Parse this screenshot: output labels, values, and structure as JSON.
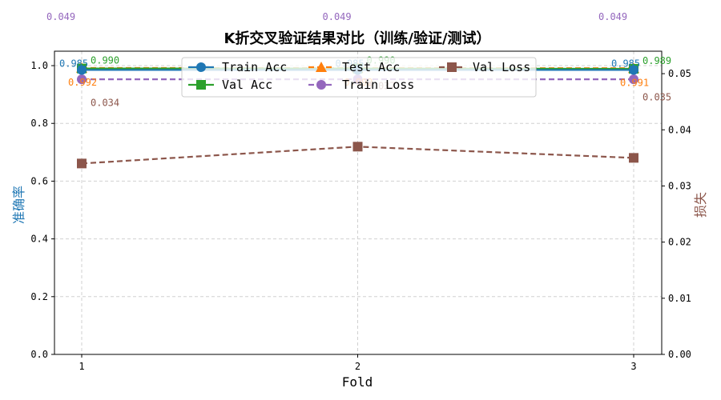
{
  "chart_data": {
    "type": "line",
    "title": "K折交叉验证结果对比（训练/验证/测试）",
    "xlabel": "Fold",
    "ylabel_left": "准确率",
    "ylabel_right": "损失",
    "x": [
      1,
      2,
      3
    ],
    "x_tick_labels": [
      "1",
      "2",
      "3"
    ],
    "ylim_left": [
      0,
      1.05
    ],
    "ylim_right": [
      0,
      0.054
    ],
    "left_ticks": [
      "0.0",
      "0.2",
      "0.4",
      "0.6",
      "0.8",
      "1.0"
    ],
    "right_ticks": [
      "0.00",
      "0.01",
      "0.02",
      "0.03",
      "0.04",
      "0.05"
    ],
    "grid": true,
    "legend_position": "top-center",
    "series": [
      {
        "name": "Train Acc",
        "axis": "left",
        "values": [
          0.985,
          0.985,
          0.985
        ],
        "labels": [
          "0.985",
          "0.985",
          "0.985"
        ],
        "color": "#1f77b4",
        "marker": "circle",
        "dash": "solid"
      },
      {
        "name": "Val Acc",
        "axis": "left",
        "values": [
          0.99,
          0.99,
          0.989
        ],
        "labels": [
          "0.990",
          "0.990",
          "0.989"
        ],
        "color": "#2ca02c",
        "marker": "square",
        "dash": "solid"
      },
      {
        "name": "Test Acc",
        "axis": "left",
        "values": [
          0.992,
          0.992,
          0.991
        ],
        "labels": [
          "0.992",
          "0.992",
          "0.991"
        ],
        "color": "#ff7f0e",
        "marker": "triangle",
        "dash": "dashed"
      },
      {
        "name": "Train Loss",
        "axis": "right",
        "values": [
          0.049,
          0.049,
          0.049
        ],
        "labels": [
          "0.049",
          "0.049",
          "0.049"
        ],
        "color": "#9467bd",
        "marker": "circle",
        "dash": "dashed"
      },
      {
        "name": "Val Loss",
        "axis": "right",
        "values": [
          0.034,
          0.037,
          0.035
        ],
        "labels": [
          "0.034",
          "0.037",
          "0.035"
        ],
        "color": "#8c564b",
        "marker": "square",
        "dash": "dashed"
      }
    ]
  }
}
